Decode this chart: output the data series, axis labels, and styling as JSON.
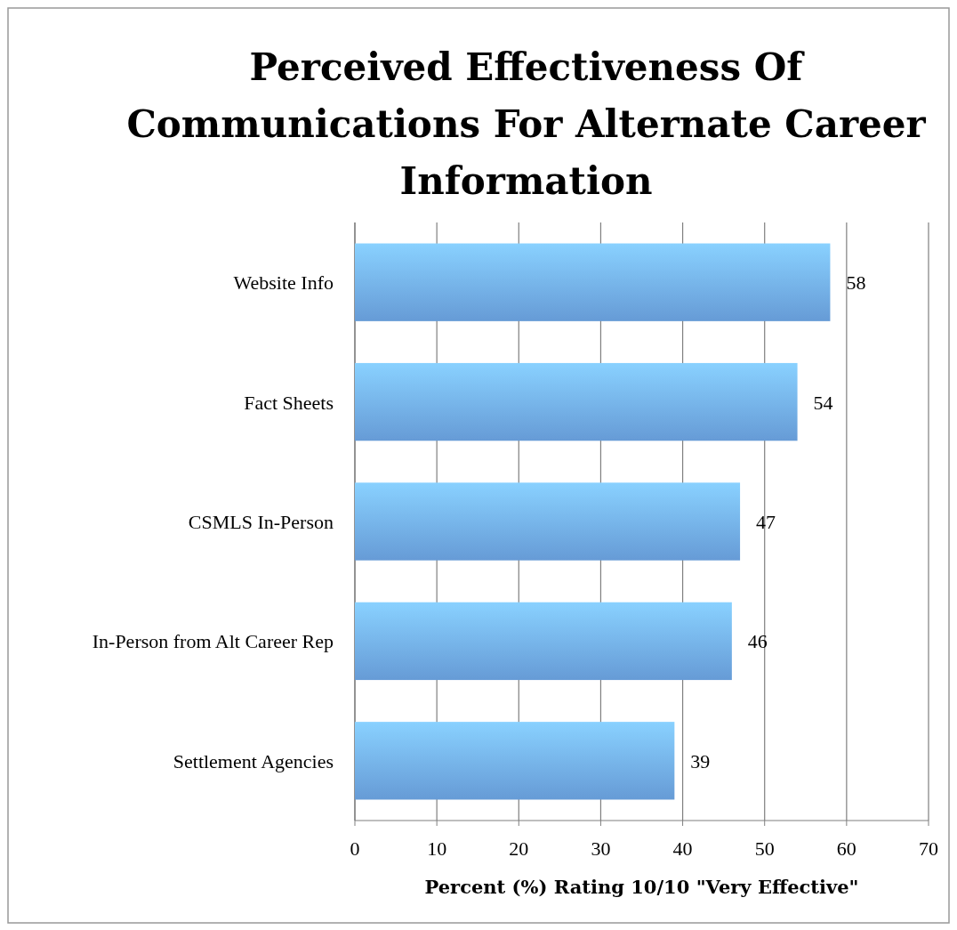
{
  "chart_data": {
    "type": "bar",
    "orientation": "horizontal",
    "title": "Perceived Effectiveness Of Communications For Alternate Career Information",
    "xlabel": "Percent (%) Rating 10/10 \"Very Effective\"",
    "categories": [
      "Website Info",
      "Fact Sheets",
      "CSMLS In-Person",
      "In-Person from Alt Career Rep",
      "Settlement Agencies"
    ],
    "values": [
      58,
      54,
      47,
      46,
      39
    ],
    "color": "#6fa9ea",
    "xlim": [
      0,
      70
    ],
    "xticks": [
      0,
      10,
      20,
      30,
      40,
      50,
      60,
      70
    ],
    "grid": "x",
    "data_labels": true
  }
}
